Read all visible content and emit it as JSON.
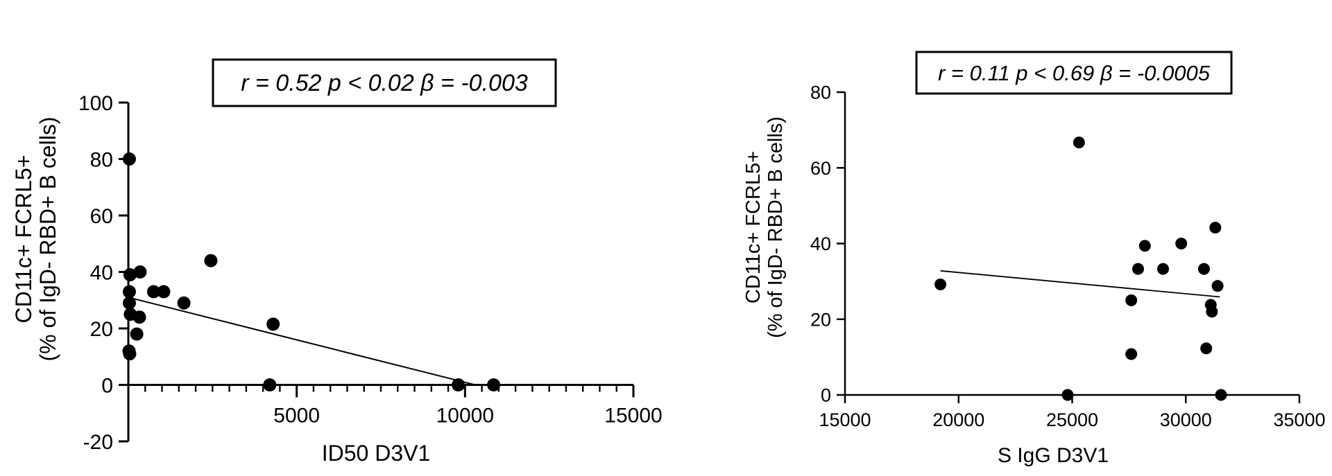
{
  "chart_data": [
    {
      "type": "scatter",
      "xlabel": "ID50 D3V1",
      "ylabel_lines": [
        "CD11c+ FCRL5+",
        "(% of IgD- RBD+ B cells)"
      ],
      "annotation": "r = 0.52 p < 0.02 β = -0.003",
      "xlim": [
        0,
        15000
      ],
      "ylim": [
        -20,
        100
      ],
      "x_ticks": [
        5000,
        10000,
        15000
      ],
      "x_tick_labels": [
        "5000",
        "10000",
        "15000"
      ],
      "y_ticks": [
        -20,
        0,
        20,
        40,
        60,
        80,
        100
      ],
      "y_tick_labels": [
        "-20",
        "0",
        "20",
        "40",
        "60",
        "80",
        "100"
      ],
      "points": [
        {
          "x": 30,
          "y": 80
        },
        {
          "x": 50,
          "y": 39
        },
        {
          "x": 350,
          "y": 40
        },
        {
          "x": 30,
          "y": 33
        },
        {
          "x": 30,
          "y": 29
        },
        {
          "x": 60,
          "y": 25
        },
        {
          "x": 250,
          "y": 18
        },
        {
          "x": 330,
          "y": 24
        },
        {
          "x": 20,
          "y": 12
        },
        {
          "x": 40,
          "y": 11
        },
        {
          "x": 750,
          "y": 33
        },
        {
          "x": 1050,
          "y": 33
        },
        {
          "x": 1650,
          "y": 29
        },
        {
          "x": 2450,
          "y": 44
        },
        {
          "x": 4300,
          "y": 21.5
        },
        {
          "x": 4200,
          "y": 0
        },
        {
          "x": 9800,
          "y": 0
        },
        {
          "x": 10850,
          "y": 0
        }
      ],
      "fit_line": {
        "x": [
          0,
          10300
        ],
        "y": [
          31,
          0
        ]
      },
      "grid": false
    },
    {
      "type": "scatter",
      "xlabel": "S IgG D3V1",
      "ylabel_lines": [
        "CD11c+ FCRL5+",
        "(% of IgD- RBD+ B cells)"
      ],
      "annotation": "r = 0.11 p < 0.69 β = -0.0005",
      "xlim": [
        15000,
        35000
      ],
      "ylim": [
        0,
        80
      ],
      "x_ticks": [
        15000,
        20000,
        25000,
        30000,
        35000
      ],
      "x_tick_labels": [
        "15000",
        "20000",
        "25000",
        "30000",
        "35000"
      ],
      "y_ticks": [
        0,
        20,
        40,
        60,
        80
      ],
      "y_tick_labels": [
        "0",
        "20",
        "40",
        "60",
        "80"
      ],
      "points": [
        {
          "x": 19200,
          "y": 29.2
        },
        {
          "x": 25300,
          "y": 66.7
        },
        {
          "x": 24800,
          "y": 0
        },
        {
          "x": 28200,
          "y": 39.4
        },
        {
          "x": 29800,
          "y": 40
        },
        {
          "x": 31300,
          "y": 44.2
        },
        {
          "x": 27900,
          "y": 33.3
        },
        {
          "x": 29000,
          "y": 33.3
        },
        {
          "x": 30800,
          "y": 33.3
        },
        {
          "x": 31400,
          "y": 28.8
        },
        {
          "x": 27600,
          "y": 25
        },
        {
          "x": 31100,
          "y": 23.8
        },
        {
          "x": 31150,
          "y": 22
        },
        {
          "x": 30900,
          "y": 12.3
        },
        {
          "x": 27600,
          "y": 10.8
        },
        {
          "x": 31550,
          "y": 0
        }
      ],
      "fit_line": {
        "x": [
          19200,
          31500
        ],
        "y": [
          32.8,
          25.9
        ]
      },
      "grid": false
    }
  ]
}
